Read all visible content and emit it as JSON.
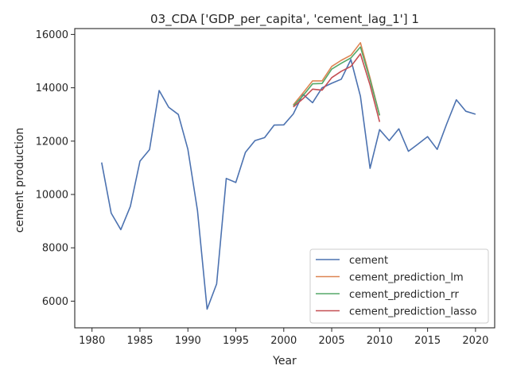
{
  "chart_data": {
    "type": "line",
    "title": "03_CDA ['GDP_per_capita', 'cement_lag_1'] 1",
    "xlabel": "Year",
    "ylabel": "cement production",
    "xlim": [
      1978.2,
      2022.0
    ],
    "ylim": [
      5000,
      16220
    ],
    "xticks": [
      1980,
      1985,
      1990,
      1995,
      2000,
      2005,
      2010,
      2015,
      2020
    ],
    "yticks": [
      6000,
      8000,
      10000,
      12000,
      14000,
      16000
    ],
    "grid": false,
    "legend_position": "lower-right",
    "series": [
      {
        "name": "cement",
        "color": "#4c72b0",
        "x": [
          1981,
          1982,
          1983,
          1984,
          1985,
          1986,
          1987,
          1988,
          1989,
          1990,
          1991,
          1992,
          1993,
          1994,
          1995,
          1996,
          1997,
          1998,
          1999,
          2000,
          2001,
          2002,
          2003,
          2004,
          2005,
          2006,
          2007,
          2008,
          2009,
          2010,
          2011,
          2012,
          2013,
          2014,
          2015,
          2016,
          2017,
          2018,
          2019,
          2020
        ],
        "y": [
          11200,
          9300,
          8680,
          9550,
          11250,
          11680,
          13900,
          13270,
          13000,
          11700,
          9400,
          5700,
          6650,
          10600,
          10450,
          11580,
          12020,
          12130,
          12600,
          12610,
          13020,
          13760,
          13440,
          14000,
          14170,
          14320,
          15060,
          13680,
          10980,
          12430,
          12020,
          12460,
          11620,
          11890,
          12170,
          11690,
          12650,
          13550,
          13120,
          13010
        ]
      },
      {
        "name": "cement_prediction_lm",
        "color": "#dd8452",
        "x": [
          2001,
          2002,
          2003,
          2004,
          2005,
          2006,
          2007,
          2008,
          2009,
          2010
        ],
        "y": [
          13360,
          13800,
          14260,
          14260,
          14800,
          15030,
          15220,
          15690,
          14370,
          12970
        ]
      },
      {
        "name": "cement_prediction_rr",
        "color": "#55a868",
        "x": [
          2001,
          2002,
          2003,
          2004,
          2005,
          2006,
          2007,
          2008,
          2009,
          2010
        ],
        "y": [
          13320,
          13700,
          14150,
          14160,
          14700,
          14920,
          15120,
          15530,
          14300,
          12960
        ]
      },
      {
        "name": "cement_prediction_lasso",
        "color": "#c44e52",
        "x": [
          2001,
          2002,
          2003,
          2004,
          2005,
          2006,
          2007,
          2008,
          2009,
          2010
        ],
        "y": [
          13280,
          13590,
          13950,
          13910,
          14380,
          14620,
          14800,
          15270,
          14100,
          12720
        ]
      }
    ]
  }
}
